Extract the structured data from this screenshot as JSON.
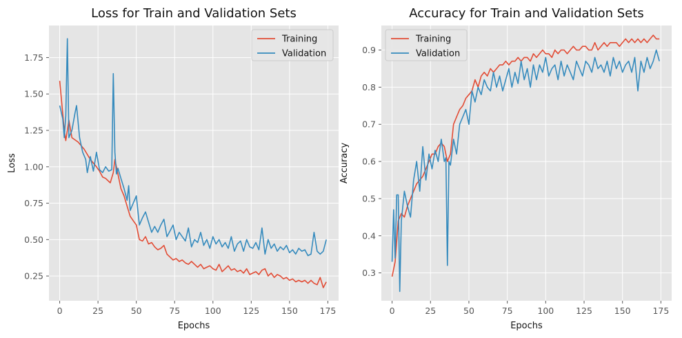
{
  "chart_data": [
    {
      "type": "line",
      "title": "Loss for Train and Validation Sets",
      "xlabel": "Epochs",
      "ylabel": "Loss",
      "xlim": [
        -7,
        182
      ],
      "ylim": [
        0.08,
        1.97
      ],
      "xticks": [
        0,
        25,
        50,
        75,
        100,
        125,
        150,
        175
      ],
      "xtick_labels": [
        "0",
        "25",
        "50",
        "75",
        "100",
        "125",
        "150",
        "175"
      ],
      "yticks": [
        0.25,
        0.5,
        0.75,
        1.0,
        1.25,
        1.5,
        1.75
      ],
      "ytick_labels": [
        "0.25",
        "0.50",
        "0.75",
        "1.00",
        "1.25",
        "1.50",
        "1.75"
      ],
      "grid": true,
      "legend_position": "top-right",
      "series": [
        {
          "name": "Training",
          "color": "#e24a33",
          "x": [
            0,
            3,
            4,
            6,
            8,
            12,
            16,
            20,
            24,
            26,
            28,
            30,
            33,
            35,
            36,
            38,
            40,
            42,
            44,
            46,
            48,
            50,
            52,
            54,
            56,
            58,
            60,
            62,
            64,
            66,
            68,
            70,
            72,
            74,
            76,
            78,
            80,
            82,
            84,
            86,
            88,
            90,
            92,
            94,
            96,
            98,
            100,
            102,
            104,
            106,
            108,
            110,
            112,
            114,
            116,
            118,
            120,
            122,
            124,
            126,
            128,
            130,
            132,
            134,
            136,
            138,
            140,
            142,
            144,
            146,
            148,
            150,
            152,
            154,
            156,
            158,
            160,
            162,
            164,
            166,
            168,
            170,
            172,
            174
          ],
          "y": [
            1.59,
            1.25,
            1.18,
            1.32,
            1.2,
            1.17,
            1.12,
            1.05,
            1.0,
            0.97,
            0.93,
            0.92,
            0.89,
            0.96,
            1.05,
            0.95,
            0.85,
            0.8,
            0.73,
            0.66,
            0.63,
            0.6,
            0.5,
            0.49,
            0.52,
            0.47,
            0.48,
            0.45,
            0.43,
            0.44,
            0.46,
            0.4,
            0.38,
            0.36,
            0.37,
            0.35,
            0.36,
            0.34,
            0.33,
            0.35,
            0.33,
            0.31,
            0.33,
            0.3,
            0.31,
            0.32,
            0.3,
            0.29,
            0.33,
            0.28,
            0.3,
            0.32,
            0.29,
            0.3,
            0.28,
            0.29,
            0.27,
            0.3,
            0.26,
            0.27,
            0.28,
            0.26,
            0.29,
            0.3,
            0.25,
            0.27,
            0.24,
            0.26,
            0.25,
            0.23,
            0.24,
            0.22,
            0.23,
            0.21,
            0.22,
            0.21,
            0.22,
            0.2,
            0.22,
            0.2,
            0.19,
            0.24,
            0.17,
            0.21
          ]
        },
        {
          "name": "Validation",
          "color": "#348abd",
          "x": [
            0,
            2,
            3,
            4,
            5,
            6,
            8,
            10,
            11,
            13,
            15,
            17,
            18,
            20,
            22,
            24,
            26,
            28,
            30,
            32,
            34,
            35,
            36,
            37,
            38,
            40,
            42,
            44,
            45,
            46,
            48,
            50,
            52,
            54,
            56,
            58,
            60,
            62,
            64,
            66,
            68,
            70,
            72,
            74,
            76,
            78,
            80,
            82,
            84,
            86,
            88,
            90,
            92,
            94,
            96,
            98,
            100,
            102,
            104,
            106,
            108,
            110,
            112,
            114,
            116,
            118,
            120,
            122,
            124,
            126,
            128,
            130,
            132,
            134,
            136,
            138,
            140,
            142,
            144,
            146,
            148,
            150,
            152,
            154,
            156,
            158,
            160,
            162,
            164,
            166,
            168,
            170,
            172,
            174
          ],
          "y": [
            1.42,
            1.33,
            1.2,
            1.35,
            1.88,
            1.2,
            1.25,
            1.37,
            1.42,
            1.2,
            1.1,
            1.05,
            0.96,
            1.07,
            0.97,
            1.1,
            0.98,
            0.96,
            1.0,
            0.97,
            0.98,
            1.64,
            1.1,
            0.95,
            0.99,
            0.92,
            0.85,
            0.77,
            0.87,
            0.7,
            0.75,
            0.8,
            0.6,
            0.65,
            0.69,
            0.62,
            0.55,
            0.59,
            0.55,
            0.6,
            0.64,
            0.52,
            0.56,
            0.6,
            0.5,
            0.55,
            0.52,
            0.49,
            0.58,
            0.45,
            0.5,
            0.48,
            0.55,
            0.46,
            0.5,
            0.44,
            0.52,
            0.47,
            0.5,
            0.45,
            0.48,
            0.44,
            0.52,
            0.42,
            0.47,
            0.49,
            0.42,
            0.5,
            0.45,
            0.44,
            0.48,
            0.43,
            0.58,
            0.4,
            0.5,
            0.44,
            0.47,
            0.42,
            0.45,
            0.43,
            0.46,
            0.41,
            0.43,
            0.4,
            0.44,
            0.42,
            0.43,
            0.39,
            0.4,
            0.55,
            0.42,
            0.4,
            0.42,
            0.5
          ]
        }
      ]
    },
    {
      "type": "line",
      "title": "Accuracy for Train and Validation Sets",
      "xlabel": "Epochs",
      "ylabel": "Accuracy",
      "xlim": [
        -7,
        182
      ],
      "ylim": [
        0.225,
        0.966
      ],
      "xticks": [
        0,
        25,
        50,
        75,
        100,
        125,
        150,
        175
      ],
      "xtick_labels": [
        "0",
        "25",
        "50",
        "75",
        "100",
        "125",
        "150",
        "175"
      ],
      "yticks": [
        0.3,
        0.4,
        0.5,
        0.6,
        0.7,
        0.8,
        0.9
      ],
      "ytick_labels": [
        "0.3",
        "0.4",
        "0.5",
        "0.6",
        "0.7",
        "0.8",
        "0.9"
      ],
      "grid": true,
      "legend_position": "top-left",
      "series": [
        {
          "name": "Training",
          "color": "#e24a33",
          "x": [
            0,
            2,
            4,
            6,
            8,
            10,
            12,
            14,
            16,
            18,
            20,
            22,
            24,
            26,
            28,
            30,
            32,
            34,
            36,
            38,
            40,
            42,
            44,
            46,
            48,
            50,
            52,
            54,
            56,
            58,
            60,
            62,
            64,
            66,
            68,
            70,
            72,
            74,
            76,
            78,
            80,
            82,
            84,
            86,
            88,
            90,
            92,
            94,
            96,
            98,
            100,
            102,
            104,
            106,
            108,
            110,
            112,
            114,
            116,
            118,
            120,
            122,
            124,
            126,
            128,
            130,
            132,
            134,
            136,
            138,
            140,
            142,
            144,
            146,
            148,
            150,
            152,
            154,
            156,
            158,
            160,
            162,
            164,
            166,
            168,
            170,
            172,
            174
          ],
          "y": [
            0.29,
            0.33,
            0.44,
            0.46,
            0.45,
            0.48,
            0.5,
            0.52,
            0.54,
            0.55,
            0.56,
            0.58,
            0.6,
            0.62,
            0.62,
            0.64,
            0.65,
            0.64,
            0.6,
            0.62,
            0.7,
            0.72,
            0.74,
            0.75,
            0.77,
            0.78,
            0.79,
            0.82,
            0.8,
            0.83,
            0.84,
            0.83,
            0.85,
            0.84,
            0.85,
            0.86,
            0.86,
            0.87,
            0.86,
            0.87,
            0.87,
            0.88,
            0.87,
            0.88,
            0.88,
            0.87,
            0.89,
            0.88,
            0.89,
            0.9,
            0.89,
            0.89,
            0.88,
            0.9,
            0.89,
            0.9,
            0.9,
            0.89,
            0.9,
            0.91,
            0.9,
            0.9,
            0.91,
            0.91,
            0.9,
            0.9,
            0.92,
            0.9,
            0.91,
            0.92,
            0.91,
            0.92,
            0.92,
            0.92,
            0.91,
            0.92,
            0.93,
            0.92,
            0.93,
            0.92,
            0.93,
            0.92,
            0.93,
            0.92,
            0.93,
            0.94,
            0.93,
            0.93
          ]
        },
        {
          "name": "Validation",
          "color": "#348abd",
          "x": [
            0,
            1,
            2,
            3,
            4,
            5,
            6,
            8,
            10,
            12,
            14,
            16,
            18,
            20,
            22,
            24,
            26,
            28,
            30,
            32,
            34,
            35,
            36,
            37,
            38,
            40,
            42,
            44,
            46,
            48,
            50,
            52,
            54,
            56,
            58,
            60,
            62,
            64,
            66,
            68,
            70,
            72,
            74,
            76,
            78,
            80,
            82,
            84,
            86,
            88,
            90,
            92,
            94,
            96,
            98,
            100,
            102,
            104,
            106,
            108,
            110,
            112,
            114,
            116,
            118,
            120,
            122,
            124,
            126,
            128,
            130,
            132,
            134,
            136,
            138,
            140,
            142,
            144,
            146,
            148,
            150,
            152,
            154,
            156,
            158,
            160,
            162,
            164,
            166,
            168,
            170,
            172,
            174
          ],
          "y": [
            0.33,
            0.47,
            0.34,
            0.51,
            0.51,
            0.25,
            0.44,
            0.52,
            0.48,
            0.45,
            0.55,
            0.6,
            0.52,
            0.64,
            0.55,
            0.62,
            0.58,
            0.63,
            0.6,
            0.66,
            0.6,
            0.61,
            0.32,
            0.6,
            0.59,
            0.66,
            0.62,
            0.7,
            0.72,
            0.74,
            0.7,
            0.79,
            0.76,
            0.8,
            0.78,
            0.82,
            0.8,
            0.79,
            0.84,
            0.8,
            0.83,
            0.79,
            0.82,
            0.85,
            0.8,
            0.84,
            0.81,
            0.87,
            0.82,
            0.85,
            0.8,
            0.86,
            0.82,
            0.86,
            0.84,
            0.88,
            0.83,
            0.85,
            0.86,
            0.82,
            0.87,
            0.83,
            0.86,
            0.84,
            0.82,
            0.87,
            0.85,
            0.83,
            0.87,
            0.86,
            0.84,
            0.88,
            0.85,
            0.86,
            0.84,
            0.87,
            0.83,
            0.88,
            0.85,
            0.87,
            0.84,
            0.86,
            0.87,
            0.84,
            0.88,
            0.79,
            0.87,
            0.84,
            0.88,
            0.85,
            0.87,
            0.9,
            0.87
          ]
        }
      ]
    }
  ]
}
